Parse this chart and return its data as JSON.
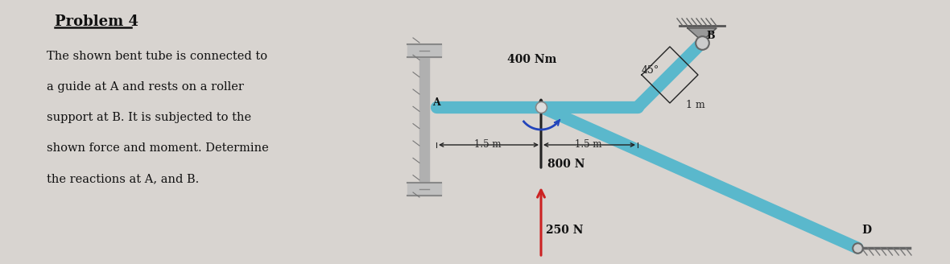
{
  "bg_color": "#d8d4d0",
  "title": "Problem 4",
  "problem_text": [
    "The shown bent tube is connected to",
    "a guide at A and rests on a roller",
    "support at B. It is subjected to the",
    "shown force and moment. Determine",
    "the reactions at A, and B."
  ],
  "tube_color": "#5ab8cc",
  "tube_lw": 11,
  "label_color": "#111111",
  "dim_color": "#222222",
  "force_red": "#cc2222",
  "force_dark": "#222222",
  "moment_color": "#2244bb",
  "wall_color": "#aaaaaa",
  "ground_color": "#666666"
}
